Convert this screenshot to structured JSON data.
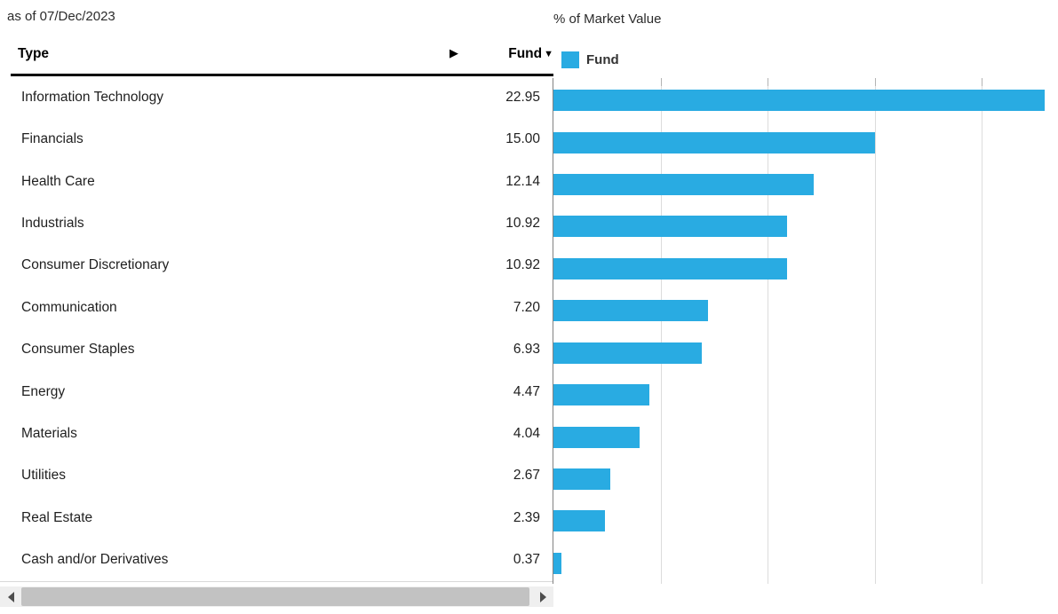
{
  "header": {
    "as_of": "as of 07/Dec/2023",
    "chart_title": "% of Market Value"
  },
  "table": {
    "type_header": "Type",
    "fund_header": "Fund",
    "sort_icon": "▼",
    "expand_icon": "▶"
  },
  "legend": {
    "label": "Fund",
    "color": "#29abe2"
  },
  "chart_data": {
    "type": "bar",
    "orientation": "horizontal",
    "title": "% of Market Value",
    "series_name": "Fund",
    "categories": [
      "Information Technology",
      "Financials",
      "Health Care",
      "Industrials",
      "Consumer Discretionary",
      "Communication",
      "Consumer Staples",
      "Energy",
      "Materials",
      "Utilities",
      "Real Estate",
      "Cash and/or Derivatives"
    ],
    "values": [
      22.95,
      15.0,
      12.14,
      10.92,
      10.92,
      7.2,
      6.93,
      4.47,
      4.04,
      2.67,
      2.39,
      0.37
    ],
    "value_labels": [
      "22.95",
      "15.00",
      "12.14",
      "10.92",
      "10.92",
      "7.20",
      "6.93",
      "4.47",
      "4.04",
      "2.67",
      "2.39",
      "0.37"
    ],
    "xlim": [
      0,
      23.6
    ],
    "gridlines": [
      5,
      10,
      15,
      20
    ],
    "grid_on": true,
    "bar_color": "#29abe2",
    "legend_position": "top-left"
  },
  "colors": {
    "bar": "#29abe2",
    "axis_line": "#828282",
    "gridline": "#dcdcdc",
    "header_rule": "#000000",
    "text": "#1f1f1f"
  }
}
